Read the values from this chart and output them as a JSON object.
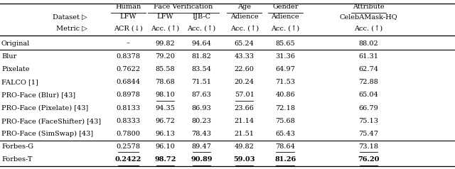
{
  "col_groups": [
    {
      "label": "Human",
      "start": 1,
      "end": 1
    },
    {
      "label": "Face Verification",
      "start": 2,
      "end": 3
    },
    {
      "label": "Age",
      "start": 4,
      "end": 4
    },
    {
      "label": "Gender",
      "start": 5,
      "end": 5
    },
    {
      "label": "Attribute",
      "start": 6,
      "end": 6
    }
  ],
  "dataset_row": [
    "LFW",
    "LFW",
    "IJB-C",
    "Adience",
    "Adience",
    "CelebAMask-HQ"
  ],
  "metric_row": [
    "ACR (↓)",
    "Acc. (↑)",
    "Acc. (↑)",
    "Acc. (↑)",
    "Acc. (↑)",
    "Acc. (↑)"
  ],
  "rows": [
    {
      "name": "Original",
      "vals": [
        "–",
        "99.82",
        "94.64",
        "65.24",
        "85.65",
        "88.02"
      ],
      "bold": [],
      "ul": [],
      "thick_above": true,
      "thick_below": true
    },
    {
      "name": "Blur",
      "vals": [
        "0.8378",
        "79.20",
        "81.82",
        "43.33",
        "31.36",
        "61.31"
      ],
      "bold": [],
      "ul": [],
      "thick_above": false,
      "thick_below": false
    },
    {
      "name": "Pixelate",
      "vals": [
        "0.7622",
        "85.58",
        "83.54",
        "22.60",
        "64.97",
        "62.74"
      ],
      "bold": [],
      "ul": [],
      "thick_above": false,
      "thick_below": false
    },
    {
      "name": "FALCO [1]",
      "vals": [
        "0.6844",
        "78.68",
        "71.51",
        "20.24",
        "71.53",
        "72.88"
      ],
      "bold": [],
      "ul": [],
      "thick_above": false,
      "thick_below": false
    },
    {
      "name": "PRO-Face (Blur) [43]",
      "vals": [
        "0.8978",
        "98.10",
        "87.63",
        "57.01",
        "40.86",
        "65.04"
      ],
      "bold": [],
      "ul": [
        1,
        3
      ],
      "thick_above": false,
      "thick_below": false
    },
    {
      "name": "PRO-Face (Pixelate) [43]",
      "vals": [
        "0.8133",
        "94.35",
        "86.93",
        "23.66",
        "72.18",
        "66.79"
      ],
      "bold": [],
      "ul": [],
      "thick_above": false,
      "thick_below": false
    },
    {
      "name": "PRO-Face (FaceShifter) [43]",
      "vals": [
        "0.8333",
        "96.72",
        "80.23",
        "21.14",
        "75.68",
        "75.13"
      ],
      "bold": [],
      "ul": [],
      "thick_above": false,
      "thick_below": false
    },
    {
      "name": "PRO-Face (SimSwap) [43]",
      "vals": [
        "0.7800",
        "96.13",
        "78.43",
        "21.51",
        "65.43",
        "75.47"
      ],
      "bold": [],
      "ul": [],
      "thick_above": false,
      "thick_below": true
    },
    {
      "name": "Forbes-G",
      "vals": [
        "0.2578",
        "96.10",
        "89.47",
        "49.82",
        "78.64",
        "73.18"
      ],
      "bold": [],
      "ul": [
        0,
        2,
        4,
        5
      ],
      "thick_above": false,
      "thick_below": false
    },
    {
      "name": "Forbes-T",
      "vals": [
        "0.2422",
        "98.72",
        "90.89",
        "59.03",
        "81.26",
        "76.20"
      ],
      "bold": [
        0,
        1,
        2,
        3,
        4,
        5
      ],
      "ul": [
        0,
        1,
        2,
        3,
        4,
        5
      ],
      "thick_above": false,
      "thick_below": false
    }
  ],
  "bg_color": "#ffffff"
}
